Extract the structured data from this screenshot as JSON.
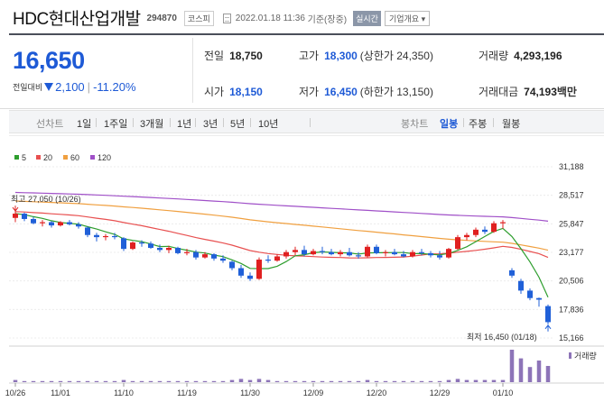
{
  "header": {
    "name": "HDC현대산업개발",
    "code": "294870",
    "market": "코스피",
    "timestamp": "2022.01.18 11:36",
    "basis": "기준(장중)",
    "realtime_btn": "실시간",
    "info_btn": "기업개요"
  },
  "price": {
    "current": "16,650",
    "change_label": "전일대비",
    "change_amount": "2,100",
    "change_pct": "-11.20%"
  },
  "stats": {
    "prev_close_label": "전일",
    "prev_close": "18,750",
    "high_label": "고가",
    "high": "18,300",
    "upper_limit": "(상한가 24,350)",
    "volume_label": "거래량",
    "volume": "4,293,196",
    "open_label": "시가",
    "open": "18,150",
    "low_label": "저가",
    "low": "16,450",
    "lower_limit": "(하한가 13,150)",
    "amount_label": "거래대금",
    "amount": "74,193",
    "amount_unit": "백만"
  },
  "period_tabs": {
    "label": "선차트",
    "items": [
      "1일",
      "1주일",
      "3개월",
      "1년",
      "3년",
      "5년",
      "10년"
    ],
    "candle_label": "봉차트",
    "candle_items": [
      "일봉",
      "주봉",
      "월봉"
    ],
    "selected_candle": "일봉"
  },
  "chart_data": {
    "type": "candlestick",
    "legend": [
      "5",
      "20",
      "60",
      "120"
    ],
    "colors": {
      "ma5": "#2e9e2e",
      "ma20": "#e85050",
      "ma60": "#f0a040",
      "ma120": "#a050c8",
      "up": "#e02020",
      "down": "#2060d8",
      "volume": "#8d74b8"
    },
    "y_ticks": [
      "31,188",
      "28,517",
      "25,847",
      "23,177",
      "20,506",
      "17,836",
      "15,166"
    ],
    "ylim": [
      15166,
      31188
    ],
    "x_labels": [
      "10/26",
      "11/01",
      "11/10",
      "11/19",
      "11/30",
      "12/09",
      "12/20",
      "12/29",
      "01/10"
    ],
    "x_label_index": [
      0,
      5,
      12,
      19,
      26,
      33,
      40,
      47,
      54
    ],
    "high_annotation": "최고 27,050 (10/26)",
    "low_annotation": "최저 16,450 (01/18)",
    "volume_label": "거래량",
    "candles": [
      [
        26400,
        27050,
        26000,
        26800
      ],
      [
        26800,
        26900,
        26100,
        26300
      ],
      [
        26300,
        26500,
        25800,
        25900
      ],
      [
        25900,
        26200,
        25600,
        26000
      ],
      [
        26000,
        26100,
        25500,
        25700
      ],
      [
        25700,
        26100,
        25600,
        26000
      ],
      [
        26000,
        26200,
        25700,
        25800
      ],
      [
        25800,
        26000,
        25400,
        25600
      ],
      [
        25500,
        25600,
        24600,
        24800
      ],
      [
        24800,
        25000,
        24200,
        24600
      ],
      [
        24600,
        24900,
        24300,
        24700
      ],
      [
        24700,
        25000,
        24400,
        24600
      ],
      [
        24500,
        24600,
        23300,
        23500
      ],
      [
        23500,
        24200,
        23400,
        24100
      ],
      [
        24100,
        24300,
        23700,
        24000
      ],
      [
        24000,
        24200,
        23500,
        23600
      ],
      [
        23600,
        23900,
        23200,
        23400
      ],
      [
        23400,
        23800,
        23100,
        23600
      ],
      [
        23600,
        23700,
        23000,
        23100
      ],
      [
        23100,
        23500,
        22900,
        23200
      ],
      [
        23200,
        23400,
        22500,
        22700
      ],
      [
        22700,
        23200,
        22600,
        23000
      ],
      [
        23000,
        23100,
        22400,
        22600
      ],
      [
        22600,
        22900,
        22200,
        22400
      ],
      [
        22300,
        22400,
        21500,
        21700
      ],
      [
        21700,
        22000,
        20800,
        21000
      ],
      [
        21000,
        21300,
        20500,
        20700
      ],
      [
        20700,
        22700,
        20600,
        22500
      ],
      [
        22500,
        22900,
        22200,
        22400
      ],
      [
        22400,
        23000,
        22300,
        22800
      ],
      [
        22800,
        23400,
        22600,
        23200
      ],
      [
        23200,
        23700,
        22900,
        23400
      ],
      [
        23400,
        23800,
        22800,
        23000
      ],
      [
        23000,
        23500,
        22900,
        23300
      ],
      [
        23300,
        23700,
        23000,
        23200
      ],
      [
        23200,
        23500,
        22900,
        23000
      ],
      [
        23000,
        23400,
        22800,
        23200
      ],
      [
        23200,
        23600,
        22800,
        22900
      ],
      [
        22900,
        23200,
        22600,
        22800
      ],
      [
        22800,
        23900,
        22700,
        23700
      ],
      [
        23700,
        23900,
        23000,
        23100
      ],
      [
        23100,
        23400,
        22800,
        23200
      ],
      [
        23200,
        23500,
        22900,
        23000
      ],
      [
        23000,
        23300,
        22700,
        22800
      ],
      [
        22800,
        23400,
        22700,
        23200
      ],
      [
        23200,
        23500,
        22900,
        23100
      ],
      [
        23100,
        23300,
        22700,
        22900
      ],
      [
        22900,
        23300,
        22500,
        22700
      ],
      [
        22700,
        23600,
        22600,
        23500
      ],
      [
        23500,
        24800,
        23400,
        24600
      ],
      [
        24600,
        25000,
        24300,
        24800
      ],
      [
        24800,
        25500,
        24600,
        25300
      ],
      [
        25300,
        25600,
        24900,
        25100
      ],
      [
        25100,
        26100,
        25000,
        25900
      ],
      [
        25900,
        26200,
        25400,
        26000
      ],
      [
        21500,
        21700,
        20800,
        21000
      ],
      [
        20500,
        20700,
        19300,
        19600
      ],
      [
        19600,
        19800,
        18700,
        18900
      ],
      [
        18900,
        18950,
        18100,
        18750
      ],
      [
        18150,
        18300,
        16450,
        16650
      ]
    ],
    "volume": [
      2,
      1,
      1,
      1,
      1,
      1,
      1,
      1,
      1,
      1,
      1,
      1,
      2,
      1,
      1,
      1,
      1,
      1,
      1,
      1,
      1,
      1,
      1,
      1,
      2,
      3,
      2,
      3,
      2,
      1,
      1,
      1,
      1,
      1,
      1,
      1,
      1,
      1,
      1,
      2,
      1,
      1,
      1,
      1,
      1,
      1,
      1,
      1,
      2,
      3,
      2,
      2,
      2,
      2,
      2,
      30,
      22,
      14,
      20,
      15
    ]
  }
}
